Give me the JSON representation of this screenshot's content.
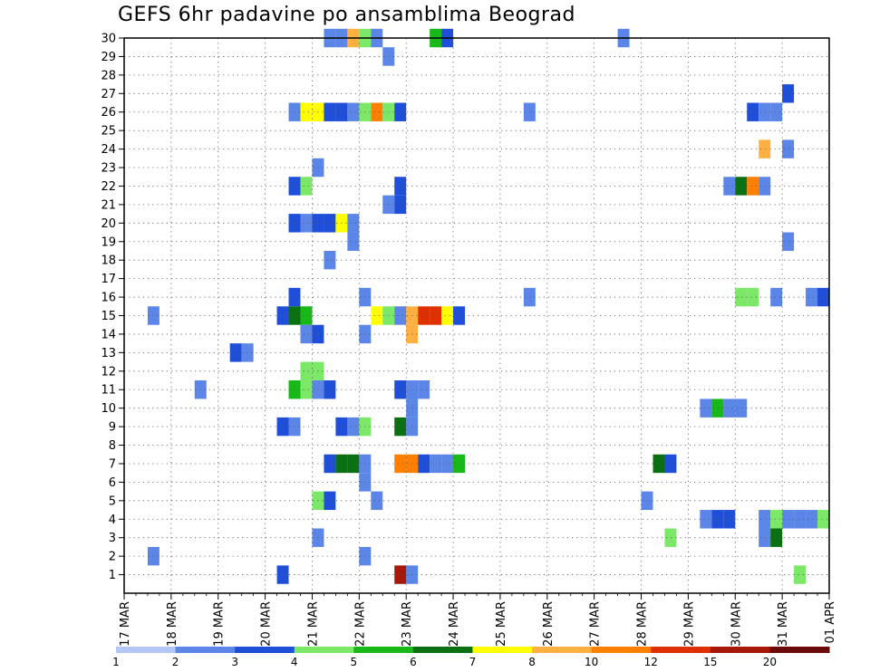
{
  "chart_data": {
    "type": "heatmap",
    "title": "GEFS 6hr padavine po ansamblima Beograd",
    "xlabel": "",
    "ylabel": "",
    "x_ticks": [
      "17 MAR",
      "18 MAR",
      "19 MAR",
      "20 MAR",
      "21 MAR",
      "22 MAR",
      "23 MAR",
      "24 MAR",
      "25 MAR",
      "26 MAR",
      "27 MAR",
      "28 MAR",
      "29 MAR",
      "30 MAR",
      "31 MAR",
      "01 APR"
    ],
    "x_range_days": [
      0,
      15
    ],
    "y_ticks": [
      1,
      2,
      3,
      4,
      5,
      6,
      7,
      8,
      9,
      10,
      11,
      12,
      13,
      14,
      15,
      16,
      17,
      18,
      19,
      20,
      21,
      22,
      23,
      24,
      25,
      26,
      27,
      28,
      29,
      30
    ],
    "y_range": [
      0,
      30
    ],
    "grid": true,
    "colorbar": {
      "labels": [
        "1",
        "2",
        "3",
        "4",
        "5",
        "6",
        "7",
        "8",
        "10",
        "12",
        "15",
        "20"
      ],
      "colors": [
        "#b3c6f5",
        "#5b86e8",
        "#1f4fd8",
        "#7ce868",
        "#18b818",
        "#0a7012",
        "#ffff00",
        "#ffb040",
        "#ff7f00",
        "#e03000",
        "#a81808",
        "#6b0a0a"
      ]
    },
    "cells": [
      [
        30,
        4.25,
        1
      ],
      [
        30,
        4.5,
        1
      ],
      [
        30,
        4.75,
        7
      ],
      [
        30,
        5.0,
        3
      ],
      [
        30,
        5.25,
        1
      ],
      [
        30,
        6.5,
        4
      ],
      [
        30,
        6.75,
        2
      ],
      [
        30,
        10.5,
        1
      ],
      [
        29,
        5.5,
        1
      ],
      [
        27,
        14.0,
        2
      ],
      [
        26,
        3.5,
        1
      ],
      [
        26,
        3.75,
        6
      ],
      [
        26,
        4.0,
        6
      ],
      [
        26,
        4.25,
        2
      ],
      [
        26,
        4.5,
        2
      ],
      [
        26,
        4.75,
        1
      ],
      [
        26,
        5.0,
        3
      ],
      [
        26,
        5.25,
        8
      ],
      [
        26,
        5.5,
        3
      ],
      [
        26,
        5.75,
        2
      ],
      [
        26,
        8.5,
        1
      ],
      [
        26,
        13.25,
        2
      ],
      [
        26,
        13.5,
        1
      ],
      [
        26,
        13.75,
        1
      ],
      [
        24,
        13.5,
        7
      ],
      [
        24,
        14.0,
        1
      ],
      [
        23,
        4.0,
        1
      ],
      [
        22,
        3.5,
        2
      ],
      [
        22,
        3.75,
        3
      ],
      [
        22,
        5.75,
        2
      ],
      [
        22,
        12.75,
        1
      ],
      [
        22,
        13.0,
        5
      ],
      [
        22,
        13.25,
        8
      ],
      [
        22,
        13.5,
        1
      ],
      [
        21,
        5.5,
        1
      ],
      [
        21,
        5.75,
        2
      ],
      [
        20,
        3.5,
        2
      ],
      [
        20,
        3.75,
        1
      ],
      [
        20,
        4.0,
        2
      ],
      [
        20,
        4.25,
        2
      ],
      [
        20,
        4.5,
        6
      ],
      [
        20,
        4.75,
        1
      ],
      [
        19,
        4.75,
        1
      ],
      [
        19,
        14.0,
        1
      ],
      [
        18,
        4.25,
        1
      ],
      [
        16,
        3.5,
        2
      ],
      [
        16,
        5.0,
        1
      ],
      [
        16,
        8.5,
        1
      ],
      [
        16,
        13.0,
        3
      ],
      [
        16,
        13.25,
        3
      ],
      [
        16,
        13.75,
        1
      ],
      [
        16,
        14.5,
        1
      ],
      [
        16,
        14.75,
        2
      ],
      [
        15,
        0.5,
        1
      ],
      [
        15,
        3.25,
        2
      ],
      [
        15,
        3.5,
        5
      ],
      [
        15,
        3.75,
        4
      ],
      [
        15,
        5.25,
        6
      ],
      [
        15,
        5.5,
        3
      ],
      [
        15,
        5.75,
        1
      ],
      [
        15,
        6.0,
        7
      ],
      [
        15,
        6.25,
        9
      ],
      [
        15,
        6.5,
        9
      ],
      [
        15,
        6.75,
        6
      ],
      [
        15,
        7.0,
        2
      ],
      [
        14,
        3.75,
        1
      ],
      [
        14,
        4.0,
        2
      ],
      [
        14,
        5.0,
        1
      ],
      [
        14,
        6.0,
        7
      ],
      [
        13,
        2.25,
        2
      ],
      [
        13,
        2.5,
        1
      ],
      [
        12,
        3.75,
        3
      ],
      [
        12,
        4.0,
        3
      ],
      [
        11,
        1.5,
        1
      ],
      [
        11,
        3.5,
        4
      ],
      [
        11,
        3.75,
        3
      ],
      [
        11,
        4.0,
        1
      ],
      [
        11,
        4.25,
        2
      ],
      [
        11,
        5.75,
        2
      ],
      [
        11,
        6.0,
        1
      ],
      [
        11,
        6.25,
        1
      ],
      [
        10,
        6.0,
        1
      ],
      [
        10,
        12.25,
        1
      ],
      [
        10,
        12.5,
        4
      ],
      [
        10,
        12.75,
        1
      ],
      [
        10,
        13.0,
        1
      ],
      [
        9,
        3.25,
        2
      ],
      [
        9,
        3.5,
        1
      ],
      [
        9,
        4.5,
        2
      ],
      [
        9,
        4.75,
        1
      ],
      [
        9,
        5.0,
        3
      ],
      [
        9,
        5.75,
        5
      ],
      [
        9,
        6.0,
        1
      ],
      [
        7,
        4.25,
        2
      ],
      [
        7,
        4.5,
        5
      ],
      [
        7,
        4.75,
        5
      ],
      [
        7,
        5.0,
        1
      ],
      [
        7,
        5.75,
        8
      ],
      [
        7,
        6.0,
        8
      ],
      [
        7,
        6.25,
        2
      ],
      [
        7,
        6.5,
        1
      ],
      [
        7,
        6.75,
        1
      ],
      [
        7,
        7.0,
        4
      ],
      [
        7,
        11.25,
        5
      ],
      [
        7,
        11.5,
        2
      ],
      [
        6,
        5.0,
        1
      ],
      [
        5,
        4.0,
        3
      ],
      [
        5,
        4.25,
        2
      ],
      [
        5,
        5.25,
        1
      ],
      [
        5,
        11.0,
        1
      ],
      [
        4,
        12.25,
        1
      ],
      [
        4,
        12.5,
        2
      ],
      [
        4,
        12.75,
        2
      ],
      [
        4,
        13.5,
        1
      ],
      [
        4,
        13.75,
        3
      ],
      [
        4,
        14.0,
        1
      ],
      [
        4,
        14.25,
        1
      ],
      [
        4,
        14.5,
        1
      ],
      [
        4,
        14.75,
        3
      ],
      [
        3,
        4.0,
        1
      ],
      [
        3,
        11.5,
        3
      ],
      [
        3,
        13.5,
        1
      ],
      [
        3,
        13.75,
        5
      ],
      [
        2,
        0.5,
        1
      ],
      [
        2,
        5.0,
        1
      ],
      [
        1,
        3.25,
        2
      ],
      [
        1,
        5.75,
        10
      ],
      [
        1,
        6.0,
        1
      ],
      [
        1,
        14.25,
        3
      ]
    ]
  }
}
